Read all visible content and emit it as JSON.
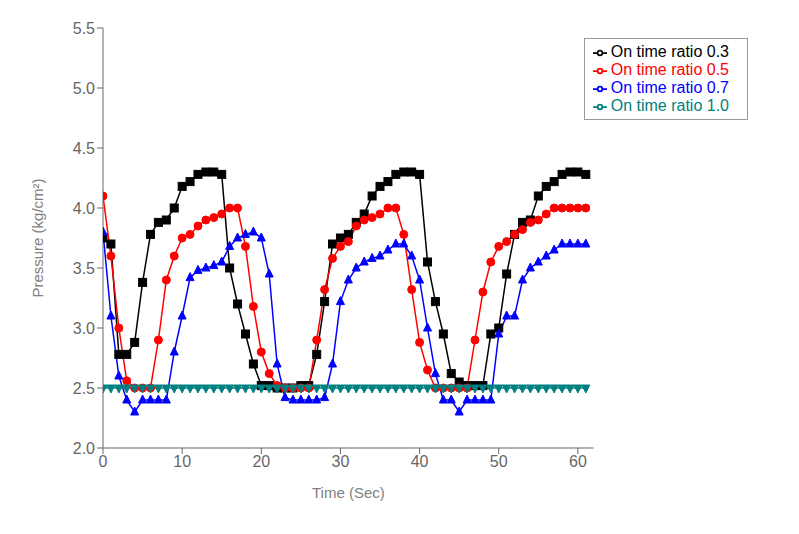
{
  "chart_data": {
    "type": "line",
    "xlabel": "Time (Sec)",
    "ylabel": "Pressure (kg/cm²)",
    "xlim": [
      0,
      62
    ],
    "ylim": [
      2.0,
      5.5
    ],
    "xticks": [
      0,
      10,
      20,
      30,
      40,
      50,
      60
    ],
    "yticks": [
      {
        "value": 2,
        "label": "2.0"
      },
      2.5,
      {
        "value": 3,
        "label": "3.0"
      },
      3.5,
      {
        "value": 4,
        "label": "4.0"
      },
      4.5,
      {
        "value": 5,
        "label": "5.0"
      },
      5.5
    ],
    "grid": false,
    "legend": "upper right",
    "x": [
      0,
      1,
      2,
      3,
      4,
      5,
      6,
      7,
      8,
      9,
      10,
      11,
      12,
      13,
      14,
      15,
      16,
      17,
      18,
      19,
      20,
      21,
      22,
      23,
      24,
      25,
      26,
      27,
      28,
      29,
      30,
      31,
      32,
      33,
      34,
      35,
      36,
      37,
      38,
      39,
      40,
      41,
      42,
      43,
      44,
      45,
      46,
      47,
      48,
      49,
      50,
      51,
      52,
      53,
      54,
      55,
      56,
      57,
      58,
      59,
      60,
      61
    ],
    "series": [
      {
        "name": "On time ratio 0.3",
        "color": "black",
        "marker": "square",
        "values": [
          3.75,
          3.7,
          2.78,
          2.78,
          2.88,
          3.38,
          3.78,
          3.88,
          3.9,
          4.0,
          4.18,
          4.22,
          4.28,
          4.3,
          4.3,
          4.28,
          3.5,
          3.2,
          2.95,
          2.7,
          2.52,
          2.52,
          2.5,
          2.5,
          2.5,
          2.52,
          2.52,
          2.78,
          3.22,
          3.7,
          3.75,
          3.78,
          3.88,
          3.95,
          4.1,
          4.18,
          4.22,
          4.28,
          4.3,
          4.3,
          4.28,
          3.55,
          3.22,
          2.95,
          2.62,
          2.55,
          2.52,
          2.52,
          2.52,
          2.95,
          3.0,
          3.45,
          3.78,
          3.88,
          3.9,
          4.1,
          4.18,
          4.22,
          4.28,
          4.3,
          4.3,
          4.28
        ]
      },
      {
        "name": "On time ratio 0.5",
        "color": "red",
        "marker": "circle",
        "values": [
          4.1,
          3.6,
          3.0,
          2.56,
          2.5,
          2.5,
          2.5,
          2.9,
          3.4,
          3.6,
          3.75,
          3.78,
          3.85,
          3.9,
          3.92,
          3.95,
          4.0,
          4.0,
          3.68,
          3.18,
          2.8,
          2.62,
          2.52,
          2.5,
          2.5,
          2.5,
          2.5,
          2.9,
          3.32,
          3.58,
          3.68,
          3.72,
          3.85,
          3.9,
          3.92,
          3.95,
          4.0,
          4.0,
          3.78,
          3.32,
          2.88,
          2.65,
          2.5,
          2.5,
          2.5,
          2.5,
          2.5,
          2.9,
          3.3,
          3.55,
          3.68,
          3.72,
          3.78,
          3.82,
          3.88,
          3.9,
          3.95,
          4.0,
          4.0,
          4.0,
          4.0,
          4.0
        ]
      },
      {
        "name": "On time ratio 0.7",
        "color": "blue",
        "marker": "triangle-up",
        "values": [
          3.8,
          3.1,
          2.6,
          2.4,
          2.3,
          2.4,
          2.4,
          2.4,
          2.4,
          2.8,
          3.1,
          3.42,
          3.48,
          3.5,
          3.52,
          3.55,
          3.68,
          3.75,
          3.78,
          3.8,
          3.75,
          3.45,
          2.7,
          2.42,
          2.4,
          2.4,
          2.4,
          2.4,
          2.42,
          2.7,
          3.22,
          3.4,
          3.5,
          3.55,
          3.58,
          3.6,
          3.65,
          3.7,
          3.7,
          3.6,
          3.4,
          3.0,
          2.62,
          2.4,
          2.4,
          2.3,
          2.4,
          2.4,
          2.4,
          2.4,
          2.95,
          3.1,
          3.1,
          3.4,
          3.5,
          3.55,
          3.6,
          3.65,
          3.7,
          3.7,
          3.7,
          3.7
        ]
      },
      {
        "name": "On time ratio 1.0",
        "color": "#008080",
        "marker": "triangle-down",
        "values": [
          2.5,
          2.5,
          2.5,
          2.5,
          2.5,
          2.5,
          2.5,
          2.5,
          2.5,
          2.5,
          2.5,
          2.5,
          2.5,
          2.5,
          2.5,
          2.5,
          2.5,
          2.5,
          2.5,
          2.5,
          2.5,
          2.5,
          2.5,
          2.5,
          2.5,
          2.5,
          2.5,
          2.5,
          2.5,
          2.5,
          2.5,
          2.5,
          2.5,
          2.5,
          2.5,
          2.5,
          2.5,
          2.5,
          2.5,
          2.5,
          2.5,
          2.5,
          2.5,
          2.5,
          2.5,
          2.5,
          2.5,
          2.5,
          2.5,
          2.5,
          2.5,
          2.5,
          2.5,
          2.5,
          2.5,
          2.5,
          2.5,
          2.5,
          2.5,
          2.5,
          2.5,
          2.5
        ]
      }
    ]
  }
}
